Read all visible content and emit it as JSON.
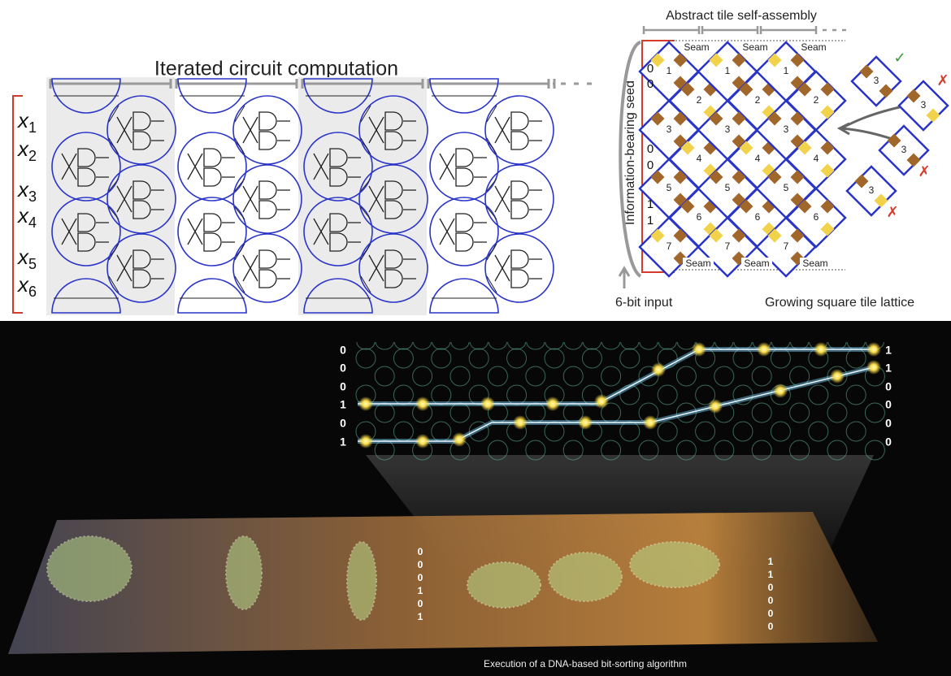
{
  "circuit": {
    "title": "Iterated circuit computation",
    "inputs": [
      {
        "var": "x",
        "sub": "1"
      },
      {
        "var": "x",
        "sub": "2"
      },
      {
        "var": "x",
        "sub": "3"
      },
      {
        "var": "x",
        "sub": "4"
      },
      {
        "var": "x",
        "sub": "5"
      },
      {
        "var": "x",
        "sub": "6"
      }
    ]
  },
  "tiles": {
    "title": "Abstract tile self-assembly",
    "seams_top": [
      "Seam",
      "Seam",
      "Seam"
    ],
    "seams_bottom": [
      "Seam",
      "Seam",
      "Seam"
    ],
    "columns": [
      [
        "1",
        "2",
        "3",
        "4",
        "5",
        "6",
        "7"
      ],
      [
        "1",
        "2",
        "3",
        "4",
        "5",
        "6",
        "7"
      ],
      [
        "1",
        "2",
        "3",
        "4",
        "5",
        "6",
        "7"
      ]
    ],
    "seed_label": "Information-bearing seed",
    "seed_bits": [
      "0",
      "0",
      "0",
      "0",
      "1",
      "1"
    ],
    "input_label": "6-bit input",
    "lattice_label": "Growing square tile lattice",
    "candidates": [
      {
        "label": "3",
        "mark": "✓"
      },
      {
        "label": "3",
        "mark": "✗"
      },
      {
        "label": "3",
        "mark": "✗"
      },
      {
        "label": "3",
        "mark": "✗"
      }
    ]
  },
  "render": {
    "left_bits": [
      "0",
      "0",
      "0",
      "1",
      "0",
      "1"
    ],
    "right_bits": [
      "1",
      "1",
      "0",
      "0",
      "0",
      "0"
    ],
    "strip_left_bits": [
      "0",
      "0",
      "0",
      "1",
      "0",
      "1"
    ],
    "strip_right_bits": [
      "1",
      "1",
      "0",
      "0",
      "0",
      "0"
    ],
    "caption": "Execution of a DNA-based bit-sorting algorithm"
  }
}
